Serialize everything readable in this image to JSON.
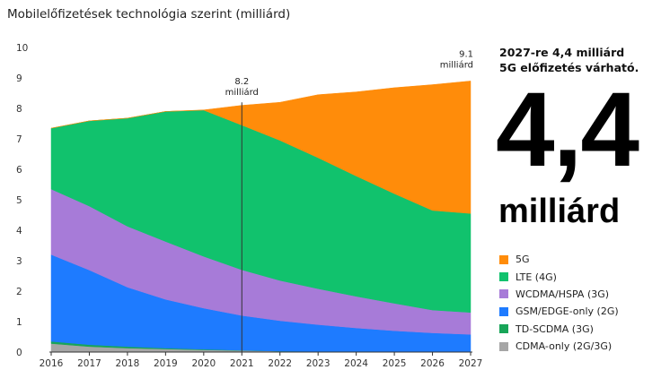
{
  "title": "Mobilelőfizetések technológia szerint (milliárd)",
  "headline_lines": [
    "2027-re 4,4 milliárd",
    "5G előfizetés várható."
  ],
  "big_number": "4,4",
  "big_unit": "milliárd",
  "chart_data": {
    "type": "area",
    "stacked": true,
    "x": [
      2016,
      2017,
      2018,
      2019,
      2020,
      2021,
      2022,
      2023,
      2024,
      2025,
      2026,
      2027
    ],
    "ylim": [
      0,
      10
    ],
    "yticks": [
      0,
      1,
      2,
      3,
      4,
      5,
      6,
      7,
      8,
      9,
      10
    ],
    "xticks": [
      "2016",
      "2017",
      "2018",
      "2019",
      "2020",
      "2021",
      "2022",
      "2023",
      "2024",
      "2025",
      "2026",
      "2027"
    ],
    "series": [
      {
        "name": "CDMA-only (2G/3G)",
        "color": "#a6a6a6",
        "values": [
          0.28,
          0.18,
          0.13,
          0.1,
          0.07,
          0.05,
          0.03,
          0.02,
          0.02,
          0.01,
          0.01,
          0.01
        ]
      },
      {
        "name": "TD-SCDMA (3G)",
        "color": "#18a558",
        "values": [
          0.07,
          0.06,
          0.05,
          0.03,
          0.02,
          0.01,
          0.0,
          0.0,
          0.0,
          0.0,
          0.0,
          0.0
        ]
      },
      {
        "name": "GSM/EDGE-only (2G)",
        "color": "#1e7bff",
        "values": [
          2.85,
          2.45,
          1.95,
          1.6,
          1.35,
          1.14,
          1.0,
          0.88,
          0.77,
          0.69,
          0.62,
          0.57
        ]
      },
      {
        "name": "WCDMA/HSPA (3G)",
        "color": "#a77bd8",
        "values": [
          2.15,
          2.1,
          2.0,
          1.9,
          1.7,
          1.5,
          1.32,
          1.18,
          1.04,
          0.9,
          0.75,
          0.72
        ]
      },
      {
        "name": "LTE (4G)",
        "color": "#11c26d",
        "values": [
          2.0,
          2.8,
          3.55,
          4.27,
          4.8,
          4.75,
          4.6,
          4.3,
          3.95,
          3.6,
          3.27,
          3.25
        ]
      },
      {
        "name": "5G",
        "color": "#ff8c0a",
        "values": [
          0.0,
          0.0,
          0.0,
          0.0,
          0.01,
          0.65,
          1.25,
          2.07,
          2.76,
          3.48,
          4.13,
          4.35
        ]
      }
    ],
    "annotations": [
      {
        "x": 2021,
        "y": 8.2,
        "lines": [
          "8.2",
          "milliárd"
        ],
        "marker_line": true
      },
      {
        "x": 2027,
        "y": 9.1,
        "lines": [
          "9.1",
          "milliárd"
        ],
        "marker_line": false
      }
    ],
    "legend_order": [
      "5G",
      "LTE (4G)",
      "WCDMA/HSPA (3G)",
      "GSM/EDGE-only (2G)",
      "TD-SCDMA (3G)",
      "CDMA-only (2G/3G)"
    ],
    "legend_position": "right",
    "grid": false
  }
}
